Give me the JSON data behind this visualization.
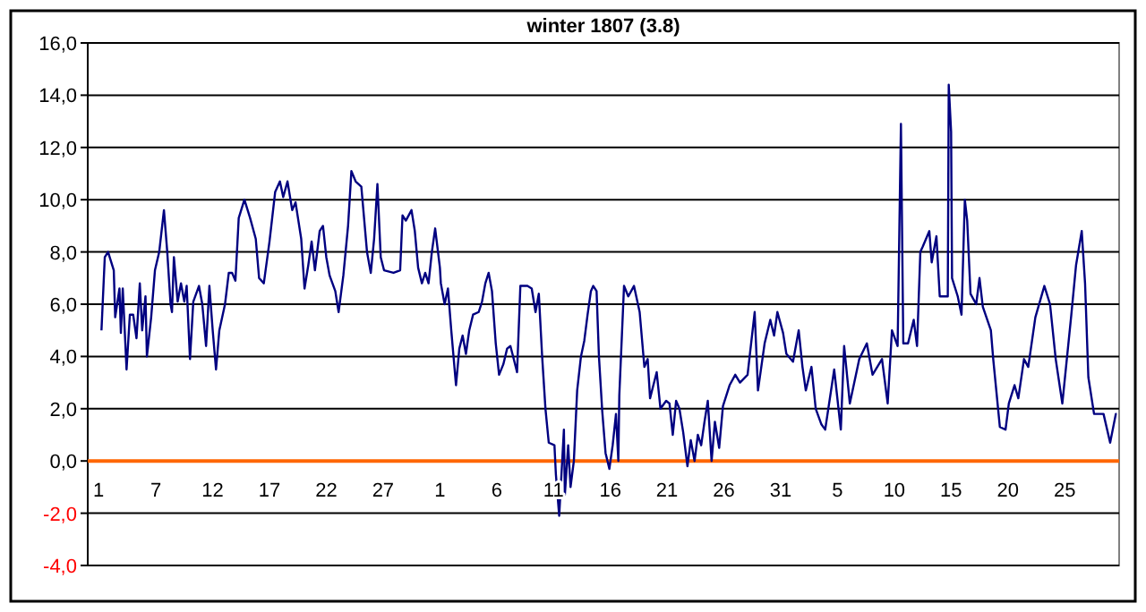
{
  "chart_data": {
    "type": "line",
    "title": "winter 1807 (3.8)",
    "x": [
      "1806-12-02T05:00",
      "1806-12-02T12:00",
      "1806-12-02T19:00",
      "1806-12-03T07:00",
      "1806-12-03T10:00",
      "1806-12-03T19:00",
      "1806-12-03T22:00",
      "1806-12-04T02:00",
      "1806-12-04T10:00",
      "1806-12-04T17:00",
      "1806-12-05T00:00",
      "1806-12-05T07:00",
      "1806-12-05T14:00",
      "1806-12-05T19:00",
      "1806-12-06T02:00",
      "1806-12-06T05:00",
      "1806-12-06T14:00",
      "1806-12-06T22:00",
      "1806-12-07T07:00",
      "1806-12-07T17:00",
      "1806-12-08T00:00",
      "1806-12-08T07:00",
      "1806-12-08T10:00",
      "1806-12-08T14:00",
      "1806-12-08T22:00",
      "1806-12-09T05:00",
      "1806-12-09T12:00",
      "1806-12-09T17:00",
      "1806-12-10T00:00",
      "1806-12-10T07:00",
      "1806-12-10T19:00",
      "1806-12-11T02:00",
      "1806-12-11T10:00",
      "1806-12-11T17:00",
      "1806-12-12T00:00",
      "1806-12-12T07:00",
      "1806-12-12T14:00",
      "1806-12-13T02:00",
      "1806-12-13T10:00",
      "1806-12-13T17:00",
      "1806-12-14T00:00",
      "1806-12-14T07:00",
      "1806-12-14T19:00",
      "1806-12-15T07:00",
      "1806-12-15T19:00",
      "1806-12-16T02:00",
      "1806-12-16T12:00",
      "1806-12-17T00:00",
      "1806-12-17T12:00",
      "1806-12-17T22:00",
      "1806-12-18T05:00",
      "1806-12-18T14:00",
      "1806-12-19T00:00",
      "1806-12-19T07:00",
      "1806-12-19T19:00",
      "1806-12-20T02:00",
      "1806-12-20T10:00",
      "1806-12-20T17:00",
      "1806-12-21T00:00",
      "1806-12-21T10:00",
      "1806-12-21T17:00",
      "1806-12-22T00:00",
      "1806-12-22T07:00",
      "1806-12-22T19:00",
      "1806-12-23T02:00",
      "1806-12-23T12:00",
      "1806-12-23T22:00",
      "1806-12-24T05:00",
      "1806-12-24T14:00",
      "1806-12-25T02:00",
      "1806-12-25T14:00",
      "1806-12-25T22:00",
      "1806-12-26T05:00",
      "1806-12-26T12:00",
      "1806-12-26T19:00",
      "1806-12-27T02:00",
      "1806-12-27T22:00",
      "1806-12-28T12:00",
      "1806-12-28T17:00",
      "1806-12-29T00:00",
      "1806-12-29T12:00",
      "1806-12-29T19:00",
      "1806-12-30T02:00",
      "1806-12-30T10:00",
      "1806-12-30T17:00",
      "1806-12-31T00:00",
      "1806-12-31T07:00",
      "1806-12-31T14:00",
      "1807-01-01T00:00",
      "1807-01-01T02:00",
      "1807-01-01T10:00",
      "1807-01-01T17:00",
      "1807-01-02T00:00",
      "1807-01-02T10:00",
      "1807-01-02T17:00",
      "1807-01-03T00:00",
      "1807-01-03T07:00",
      "1807-01-03T14:00",
      "1807-01-03T22:00",
      "1807-01-04T10:00",
      "1807-01-04T17:00",
      "1807-01-05T00:00",
      "1807-01-05T07:00",
      "1807-01-05T14:00",
      "1807-01-05T22:00",
      "1807-01-06T05:00",
      "1807-01-06T14:00",
      "1807-01-06T22:00",
      "1807-01-07T05:00",
      "1807-01-07T12:00",
      "1807-01-07T19:00",
      "1807-01-08T02:00",
      "1807-01-08T17:00",
      "1807-01-09T02:00",
      "1807-01-09T10:00",
      "1807-01-09T17:00",
      "1807-01-10T00:00",
      "1807-01-10T07:00",
      "1807-01-10T14:00",
      "1807-01-11T02:00",
      "1807-01-11T05:00",
      "1807-01-11T12:00",
      "1807-01-11T22:00",
      "1807-01-12T00:00",
      "1807-01-12T07:00",
      "1807-01-12T12:00",
      "1807-01-12T19:00",
      "1807-01-13T02:00",
      "1807-01-13T10:00",
      "1807-01-13T17:00",
      "1807-01-14T00:00",
      "1807-01-14T07:00",
      "1807-01-14T12:00",
      "1807-01-14T19:00",
      "1807-01-15T00:00",
      "1807-01-15T07:00",
      "1807-01-15T14:00",
      "1807-01-15T22:00",
      "1807-01-16T05:00",
      "1807-01-16T12:00",
      "1807-01-16T17:00",
      "1807-01-16T19:00",
      "1807-01-17T05:00",
      "1807-01-17T14:00",
      "1807-01-18T02:00",
      "1807-01-18T14:00",
      "1807-01-19T00:00",
      "1807-01-19T07:00",
      "1807-01-19T12:00",
      "1807-01-19T19:00",
      "1807-01-20T02:00",
      "1807-01-20T10:00",
      "1807-01-20T22:00",
      "1807-01-21T05:00",
      "1807-01-21T12:00",
      "1807-01-21T19:00",
      "1807-01-22T02:00",
      "1807-01-22T10:00",
      "1807-01-22T19:00",
      "1807-01-23T02:00",
      "1807-01-23T10:00",
      "1807-01-23T17:00",
      "1807-01-24T00:00",
      "1807-01-24T07:00",
      "1807-01-24T14:00",
      "1807-01-24T22:00",
      "1807-01-25T05:00",
      "1807-01-25T14:00",
      "1807-01-25T22:00",
      "1807-01-26T12:00",
      "1807-01-27T00:00",
      "1807-01-27T10:00",
      "1807-01-28T02:00",
      "1807-01-28T17:00",
      "1807-01-29T00:00",
      "1807-01-29T14:00",
      "1807-01-30T02:00",
      "1807-01-30T10:00",
      "1807-01-30T17:00",
      "1807-01-31T05:00",
      "1807-01-31T12:00",
      "1807-02-01T02:00",
      "1807-02-01T14:00",
      "1807-02-01T22:00",
      "1807-02-02T05:00",
      "1807-02-02T17:00",
      "1807-02-03T02:00",
      "1807-02-03T14:00",
      "1807-02-03T22:00",
      "1807-02-04T17:00",
      "1807-02-05T07:00",
      "1807-02-05T14:00",
      "1807-02-06T02:00",
      "1807-02-06T22:00",
      "1807-02-07T14:00",
      "1807-02-08T02:00",
      "1807-02-08T22:00",
      "1807-02-09T10:00",
      "1807-02-09T19:00",
      "1807-02-10T07:00",
      "1807-02-10T14:00",
      "1807-02-10T19:00",
      "1807-02-11T05:00",
      "1807-02-11T17:00",
      "1807-02-12T00:00",
      "1807-02-12T07:00",
      "1807-02-12T12:00",
      "1807-02-13T02:00",
      "1807-02-13T07:00",
      "1807-02-13T17:00",
      "1807-02-14T00:00",
      "1807-02-14T17:00",
      "1807-02-14T19:00",
      "1807-02-15T00:00",
      "1807-02-15T02:00",
      "1807-02-15T14:00",
      "1807-02-15T22:00",
      "1807-02-16T05:00",
      "1807-02-16T10:00",
      "1807-02-16T17:00",
      "1807-02-17T05:00",
      "1807-02-17T12:00",
      "1807-02-17T19:00",
      "1807-02-18T12:00",
      "1807-02-18T17:00",
      "1807-02-19T07:00",
      "1807-02-19T19:00",
      "1807-02-20T02:00",
      "1807-02-20T14:00",
      "1807-02-20T22:00",
      "1807-02-21T10:00",
      "1807-02-21T19:00",
      "1807-02-22T10:00",
      "1807-02-23T05:00",
      "1807-02-23T17:00",
      "1807-02-24T05:00",
      "1807-02-24T19:00",
      "1807-02-25T14:00",
      "1807-02-26T00:00",
      "1807-02-26T12:00",
      "1807-02-26T19:00",
      "1807-02-27T02:00",
      "1807-02-27T14:00",
      "1807-02-28T10:00",
      "1807-03-01T00:00",
      "1807-03-01T12:00",
      "1807-03-01T14:00"
    ],
    "series": [
      {
        "color": "#000080",
        "values": [
          5.0,
          7.8,
          8.0,
          7.3,
          5.5,
          6.6,
          4.9,
          6.6,
          3.5,
          5.6,
          5.6,
          4.7,
          6.8,
          5.0,
          6.3,
          4.0,
          5.5,
          7.3,
          8.0,
          9.6,
          8.0,
          6.0,
          5.7,
          7.8,
          6.1,
          6.8,
          6.1,
          6.7,
          3.9,
          6.1,
          6.7,
          6.0,
          4.4,
          6.7,
          5.0,
          3.5,
          5.0,
          6.0,
          7.2,
          7.2,
          6.9,
          9.3,
          10.0,
          9.3,
          8.5,
          7.0,
          6.8,
          8.4,
          10.3,
          10.7,
          10.1,
          10.7,
          9.6,
          9.9,
          8.5,
          6.6,
          7.5,
          8.4,
          7.3,
          8.8,
          9.0,
          7.8,
          7.1,
          6.5,
          5.7,
          7.1,
          9.0,
          11.1,
          10.7,
          10.5,
          8.0,
          7.2,
          8.5,
          10.6,
          7.8,
          7.3,
          7.2,
          7.3,
          9.4,
          9.2,
          9.6,
          8.8,
          7.4,
          6.8,
          7.2,
          6.8,
          8.0,
          8.9,
          7.4,
          6.8,
          6.0,
          6.6,
          5.0,
          2.9,
          4.3,
          4.8,
          4.1,
          5.0,
          5.6,
          5.7,
          6.1,
          6.8,
          7.2,
          6.5,
          4.5,
          3.3,
          3.7,
          4.3,
          4.4,
          3.9,
          3.4,
          6.7,
          6.7,
          6.6,
          5.7,
          6.4,
          4.0,
          2.0,
          0.7,
          0.6,
          -0.5,
          -2.1,
          1.2,
          -1.3,
          0.6,
          -1.0,
          0.0,
          2.7,
          4.0,
          4.6,
          5.6,
          6.5,
          6.7,
          6.5,
          4.0,
          1.9,
          0.3,
          -0.3,
          0.6,
          1.8,
          0.0,
          2.5,
          6.7,
          6.3,
          6.7,
          5.7,
          3.6,
          3.9,
          2.4,
          2.9,
          3.4,
          2.0,
          2.3,
          2.2,
          1.0,
          2.3,
          2.0,
          1.1,
          -0.2,
          0.8,
          0.0,
          1.0,
          0.6,
          1.5,
          2.3,
          0.0,
          1.5,
          0.5,
          2.1,
          2.9,
          3.3,
          3.0,
          3.3,
          5.7,
          2.7,
          4.5,
          5.4,
          4.8,
          5.7,
          4.9,
          4.1,
          3.8,
          5.0,
          3.6,
          2.7,
          3.6,
          2.0,
          1.4,
          1.2,
          3.5,
          1.2,
          4.4,
          2.2,
          3.9,
          4.5,
          3.3,
          3.9,
          2.2,
          5.0,
          4.4,
          12.9,
          4.5,
          4.5,
          5.4,
          4.4,
          8.0,
          8.2,
          8.8,
          7.6,
          8.6,
          6.3,
          6.3,
          14.4,
          12.6,
          7.0,
          6.3,
          5.6,
          10.0,
          9.2,
          6.4,
          6.0,
          7.0,
          5.9,
          5.0,
          3.9,
          1.3,
          1.2,
          2.2,
          2.9,
          2.4,
          3.9,
          3.6,
          5.5,
          6.7,
          6.0,
          3.9,
          2.2,
          5.6,
          7.5,
          8.8,
          6.8,
          3.2,
          1.8,
          1.8,
          0.7,
          1.8,
          1.8
        ]
      }
    ],
    "xlim": [
      "1806-12-01T00:00",
      "1807-03-01T19:00"
    ],
    "xticks": [
      {
        "value": "1806-12-01",
        "label": "1"
      },
      {
        "value": "1806-12-07",
        "label": "7"
      },
      {
        "value": "1806-12-12",
        "label": "12"
      },
      {
        "value": "1806-12-17",
        "label": "17"
      },
      {
        "value": "1806-12-22",
        "label": "22"
      },
      {
        "value": "1806-12-27",
        "label": "27"
      },
      {
        "value": "1807-01-01",
        "label": "1"
      },
      {
        "value": "1807-01-06",
        "label": "6"
      },
      {
        "value": "1807-01-11",
        "label": "11"
      },
      {
        "value": "1807-01-16",
        "label": "16"
      },
      {
        "value": "1807-01-21",
        "label": "21"
      },
      {
        "value": "1807-01-26",
        "label": "26"
      },
      {
        "value": "1807-01-31",
        "label": "31"
      },
      {
        "value": "1807-02-05",
        "label": "5"
      },
      {
        "value": "1807-02-10",
        "label": "10"
      },
      {
        "value": "1807-02-15",
        "label": "15"
      },
      {
        "value": "1807-02-20",
        "label": "20"
      },
      {
        "value": "1807-02-25",
        "label": "25"
      }
    ],
    "ylim": [
      -4,
      16
    ],
    "yticks": [
      {
        "value": -4,
        "label": "-4,0"
      },
      {
        "value": -2,
        "label": "-2,0"
      },
      {
        "value": 0,
        "label": "0,0"
      },
      {
        "value": 2,
        "label": "2,0"
      },
      {
        "value": 4,
        "label": "4,0"
      },
      {
        "value": 6,
        "label": "6,0"
      },
      {
        "value": 8,
        "label": "8,0"
      },
      {
        "value": 10,
        "label": "10,0"
      },
      {
        "value": 12,
        "label": "12,0"
      },
      {
        "value": 14,
        "label": "14,0"
      },
      {
        "value": 16,
        "label": "16,0"
      }
    ],
    "grid": "y",
    "marker": "none",
    "line_style": "solid"
  }
}
